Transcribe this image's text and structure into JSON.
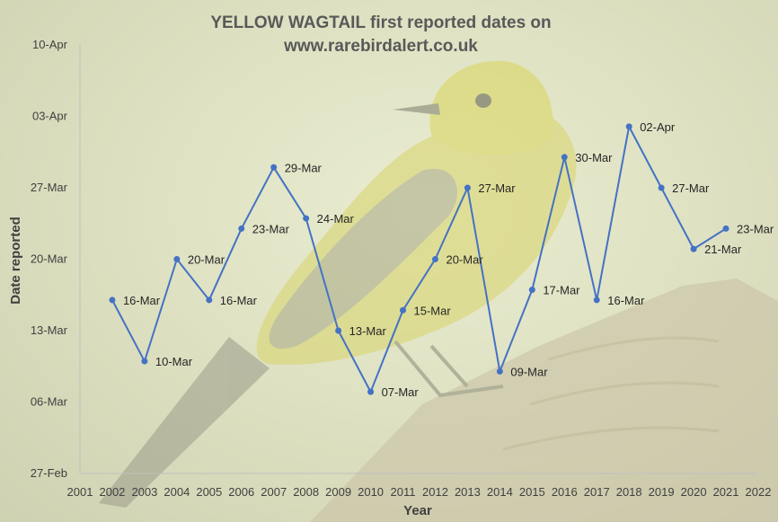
{
  "chart_data": {
    "type": "line",
    "title_line1": "YELLOW WAGTAIL first reported dates on",
    "title_line2": "www.rarebirdalert.co.uk",
    "xlabel": "Year",
    "ylabel": "Date reported",
    "x_ticks": [
      "2001",
      "2002",
      "2003",
      "2004",
      "2005",
      "2006",
      "2007",
      "2008",
      "2009",
      "2010",
      "2011",
      "2012",
      "2013",
      "2014",
      "2015",
      "2016",
      "2017",
      "2018",
      "2019",
      "2020",
      "2021",
      "2022"
    ],
    "y_ticks": [
      "27-Feb",
      "06-Mar",
      "13-Mar",
      "20-Mar",
      "27-Mar",
      "03-Apr",
      "10-Apr"
    ],
    "xlim": [
      2001,
      2022
    ],
    "ylim": [
      "27-Feb",
      "10-Apr"
    ],
    "grid": false,
    "colors": {
      "line": "#4472c4",
      "marker": "#4472c4"
    },
    "series": [
      {
        "x": [
          2002,
          2003,
          2004,
          2005,
          2006,
          2007,
          2008,
          2009,
          2010,
          2011,
          2012,
          2013,
          2014,
          2015,
          2016,
          2017,
          2018,
          2019,
          2020,
          2021
        ],
        "dates": [
          "16-Mar",
          "10-Mar",
          "20-Mar",
          "16-Mar",
          "23-Mar",
          "29-Mar",
          "24-Mar",
          "13-Mar",
          "07-Mar",
          "15-Mar",
          "20-Mar",
          "27-Mar",
          "09-Mar",
          "17-Mar",
          "30-Mar",
          "16-Mar",
          "02-Apr",
          "27-Mar",
          "21-Mar",
          "23-Mar"
        ],
        "labels": [
          "16-Mar",
          "10-Mar",
          "20-Mar",
          "16-Mar",
          "23-Mar",
          "29-Mar",
          "24-Mar",
          "13-Mar",
          "07-Mar",
          "15-Mar",
          "20-Mar",
          "27-Mar",
          "09-Mar",
          "17-Mar",
          "30-Mar",
          "16-Mar",
          "02-Apr",
          "27-Mar",
          "21-Mar",
          "23-Mar"
        ]
      }
    ]
  }
}
